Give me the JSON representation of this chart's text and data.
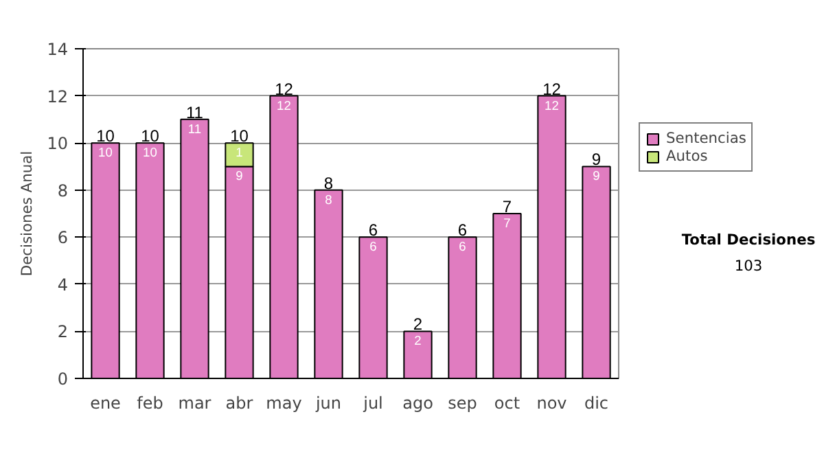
{
  "chart_data": {
    "type": "bar",
    "stacked": true,
    "ylabel": "Decisiones Anual",
    "categories": [
      "ene",
      "feb",
      "mar",
      "abr",
      "may",
      "jun",
      "jul",
      "ago",
      "sep",
      "oct",
      "nov",
      "dic"
    ],
    "series": [
      {
        "name": "Sentencias",
        "color": "#e07cc0",
        "values": [
          10,
          10,
          11,
          9,
          12,
          8,
          6,
          2,
          6,
          7,
          12,
          9
        ]
      },
      {
        "name": "Autos",
        "color": "#c8e67a",
        "values": [
          null,
          null,
          null,
          1,
          null,
          null,
          null,
          null,
          null,
          null,
          null,
          null
        ]
      }
    ],
    "totals": [
      "10",
      "10",
      "11",
      "10",
      "12",
      "8",
      "6",
      "2",
      "6",
      "7",
      "12",
      "9"
    ],
    "data_labels": true,
    "ylim": [
      0,
      14
    ],
    "yticks": [
      0,
      2,
      4,
      6,
      8,
      10,
      12,
      14
    ],
    "grid": "y",
    "legend": "right",
    "annotations": [
      "Total Decisiones",
      "103"
    ]
  }
}
